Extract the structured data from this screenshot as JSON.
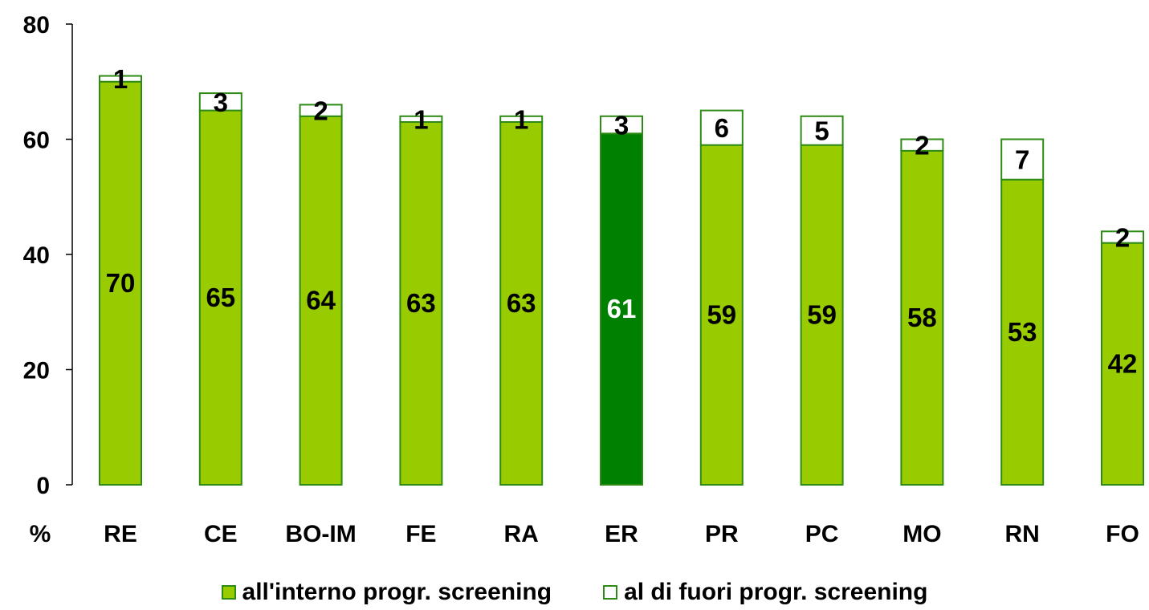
{
  "chart_data": {
    "type": "bar",
    "stacked": true,
    "y_unit_label": "%",
    "categories": [
      "RE",
      "CE",
      "BO-IM",
      "FE",
      "RA",
      "ER",
      "PR",
      "PC",
      "MO",
      "RN",
      "FO"
    ],
    "series": [
      {
        "name": "all'interno progr. screening",
        "values": [
          70,
          65,
          64,
          63,
          63,
          61,
          59,
          59,
          58,
          53,
          42
        ],
        "color": "#99cc00",
        "highlight_color": "#008000"
      },
      {
        "name": "al di fuori progr. screening",
        "values": [
          1,
          3,
          2,
          1,
          1,
          3,
          6,
          5,
          2,
          7,
          2
        ],
        "color": "#ffffff"
      }
    ],
    "highlight_category": "ER",
    "border_color": "#2e8b16",
    "ylim": [
      0,
      80
    ],
    "yticks": [
      0,
      20,
      40,
      60,
      80
    ],
    "grid": false,
    "legend_position": "bottom"
  }
}
